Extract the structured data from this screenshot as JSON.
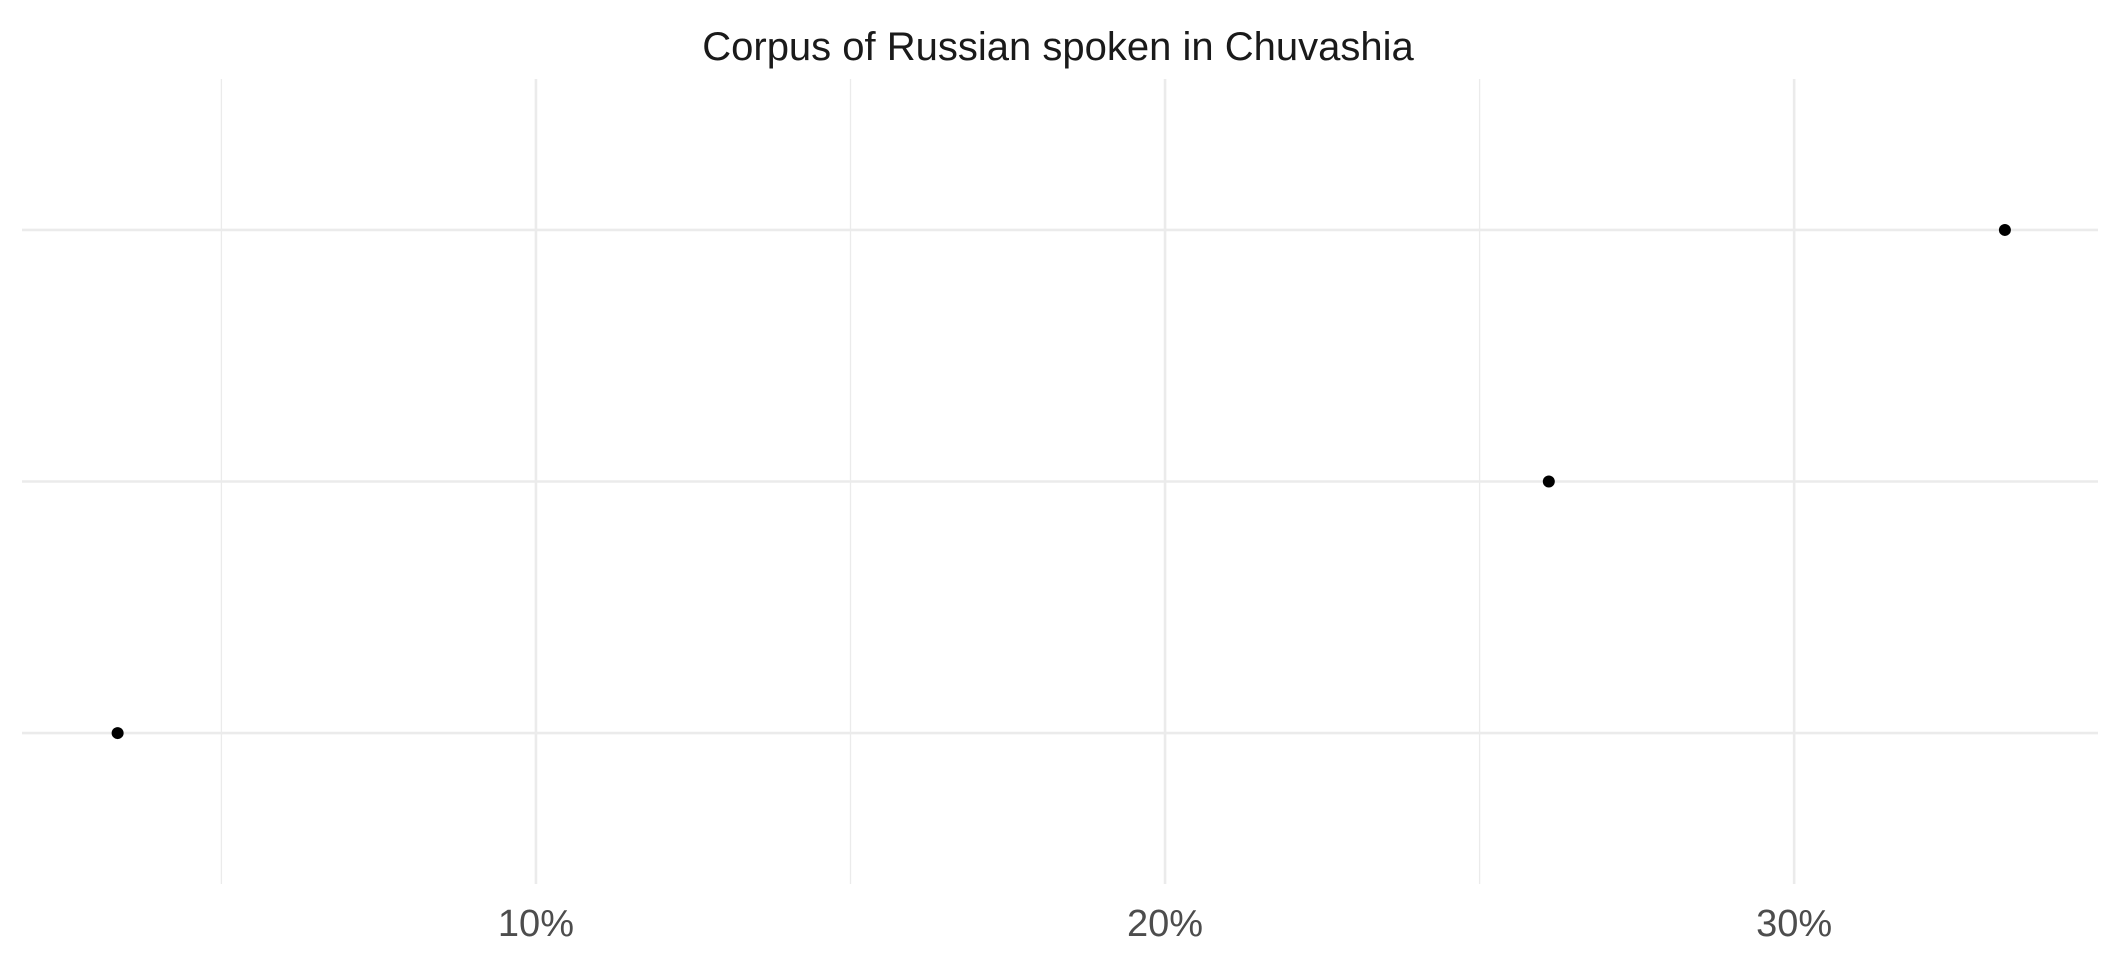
{
  "chart_data": {
    "type": "scatter",
    "title": "Corpus of Russian spoken in Chuvashia",
    "xlabel": "",
    "ylabel": "",
    "x_ticks": [
      {
        "value": 0.1,
        "label": "10%"
      },
      {
        "value": 0.2,
        "label": "20%"
      },
      {
        "value": 0.3,
        "label": "30%"
      }
    ],
    "x_minor_ticks": [
      0.05,
      0.15,
      0.25
    ],
    "xlim": [
      0.0183,
      0.3483
    ],
    "ylim": [
      0.4,
      3.6
    ],
    "y_levels": 3,
    "grid": true,
    "legend": "none",
    "colors": {
      "point": "#000000",
      "grid": "#ebebeb",
      "tick_text": "#4d4d4d",
      "title_text": "#1a1a1a"
    },
    "points": [
      {
        "x": 0.0335,
        "y": 1
      },
      {
        "x": 0.261,
        "y": 2
      },
      {
        "x": 0.3335,
        "y": 3
      }
    ]
  }
}
